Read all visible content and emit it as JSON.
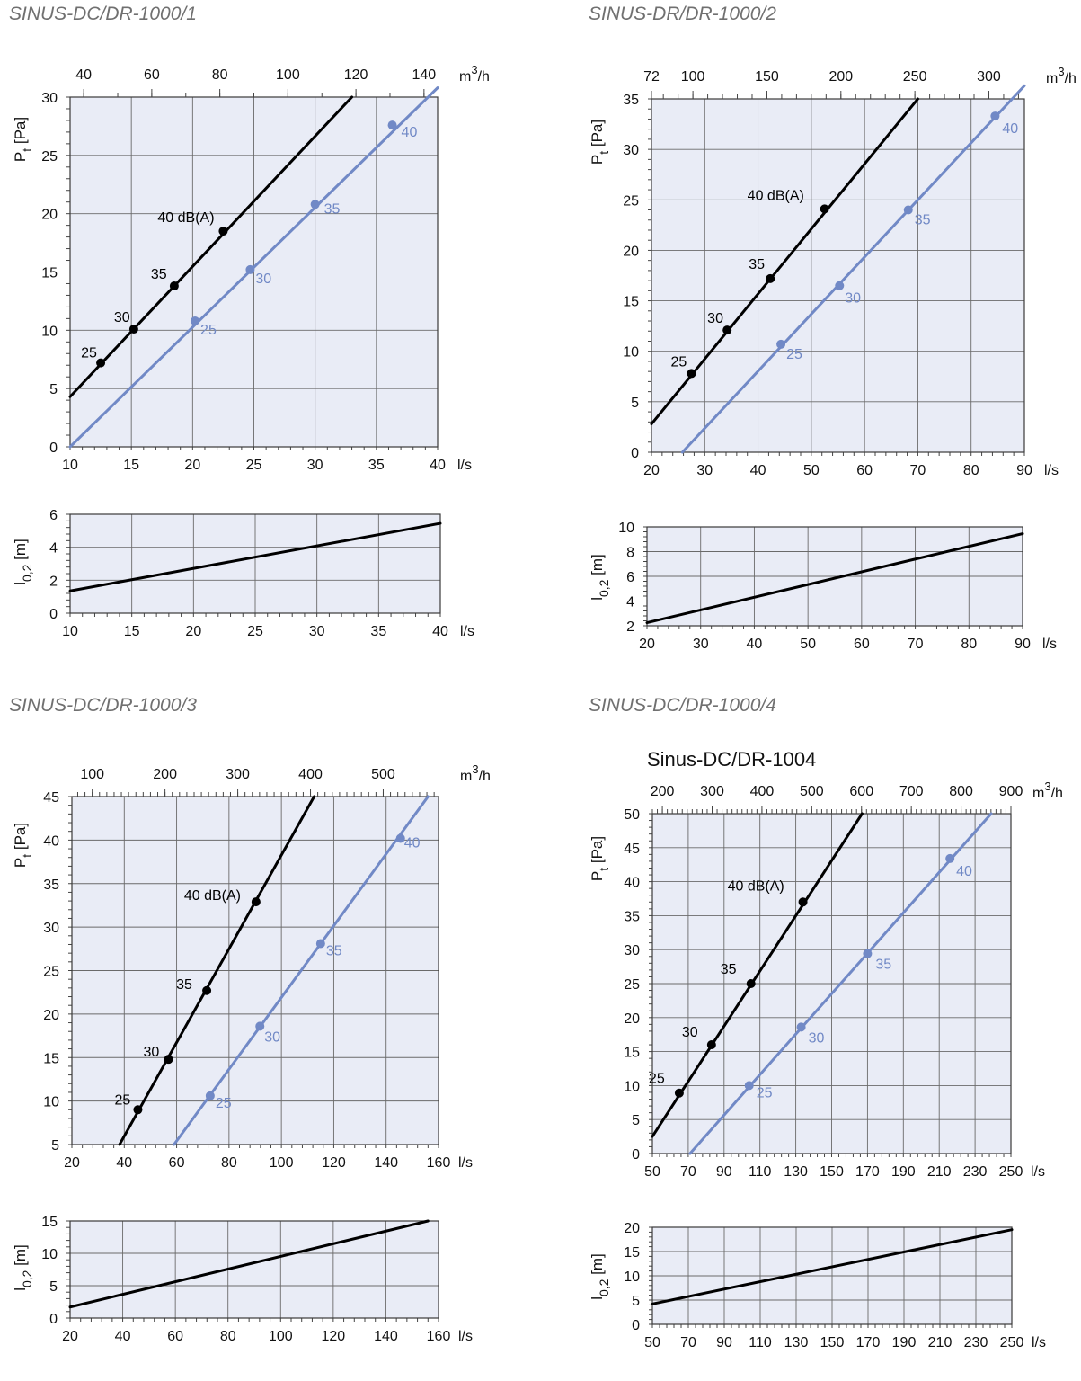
{
  "sections": [
    {
      "title": "SINUS-DC/DR-1000/1"
    },
    {
      "title": "SINUS-DR/DR-1000/2"
    },
    {
      "title": "SINUS-DC/DR-1000/3"
    },
    {
      "title": "SINUS-DC/DR-1000/4"
    }
  ],
  "colors": {
    "black_series": "#000000",
    "blue_series": "#7189c6",
    "plot_background": "#e9ecf6"
  },
  "chart_data": [
    {
      "type": "line",
      "title": "",
      "xlabel": "l/s",
      "ylabel": "Pt [Pa]",
      "top_axis_label": "m3/h",
      "xlim": [
        10,
        40
      ],
      "ylim": [
        0,
        30
      ],
      "x_ticks": [
        10,
        15,
        20,
        25,
        30,
        35,
        40
      ],
      "y_ticks": [
        0,
        5,
        10,
        15,
        20,
        25,
        30
      ],
      "top_ticks": [
        40,
        60,
        80,
        100,
        120,
        140
      ],
      "series": [
        {
          "color": "black",
          "line": [
            [
              10,
              4.3
            ],
            [
              33,
              30
            ]
          ],
          "points": [
            {
              "x": 12.5,
              "y": 7.2,
              "label": "25"
            },
            {
              "x": 15.2,
              "y": 10.1,
              "label": "30"
            },
            {
              "x": 18.5,
              "y": 13.8,
              "label": "35"
            },
            {
              "x": 22.5,
              "y": 18.5,
              "label": "40 dB(A)"
            }
          ]
        },
        {
          "color": "blue",
          "line": [
            [
              10,
              0
            ],
            [
              40,
              30.8
            ]
          ],
          "points": [
            {
              "x": 20.2,
              "y": 10.8,
              "label": "25"
            },
            {
              "x": 24.7,
              "y": 15.2,
              "label": "30"
            },
            {
              "x": 30,
              "y": 20.8,
              "label": "35"
            },
            {
              "x": 36.3,
              "y": 27.6,
              "label": "40"
            }
          ]
        }
      ]
    },
    {
      "type": "line",
      "title": "",
      "xlabel": "l/s",
      "ylabel": "l0,2 [m]",
      "xlim": [
        10,
        40
      ],
      "ylim": [
        0,
        6
      ],
      "x_ticks": [
        10,
        15,
        20,
        25,
        30,
        35,
        40
      ],
      "y_ticks": [
        0,
        2,
        4,
        6
      ],
      "series": [
        {
          "color": "black",
          "line": [
            [
              10,
              1.35
            ],
            [
              40,
              5.45
            ]
          ]
        }
      ]
    },
    {
      "type": "line",
      "title": "",
      "xlabel": "l/s",
      "ylabel": "Pt [Pa]",
      "top_axis_label": "m3/h",
      "xlim": [
        20,
        90
      ],
      "ylim": [
        0,
        35
      ],
      "x_ticks": [
        20,
        30,
        40,
        50,
        60,
        70,
        80,
        90
      ],
      "y_ticks": [
        0,
        5,
        10,
        15,
        20,
        25,
        30,
        35
      ],
      "top_ticks": [
        72,
        100,
        150,
        200,
        250,
        300
      ],
      "series": [
        {
          "color": "black",
          "line": [
            [
              20,
              2.8
            ],
            [
              70,
              35
            ]
          ],
          "points": [
            {
              "x": 27.5,
              "y": 7.8,
              "label": "25"
            },
            {
              "x": 34.2,
              "y": 12.1,
              "label": "30"
            },
            {
              "x": 42.3,
              "y": 17.2,
              "label": "35"
            },
            {
              "x": 52.5,
              "y": 24.1,
              "label": "40 dB(A)"
            }
          ]
        },
        {
          "color": "blue",
          "line": [
            [
              25.8,
              0
            ],
            [
              90,
              36.3
            ]
          ],
          "points": [
            {
              "x": 44.3,
              "y": 10.7,
              "label": "25"
            },
            {
              "x": 55.3,
              "y": 16.5,
              "label": "30"
            },
            {
              "x": 68.2,
              "y": 24.0,
              "label": "35"
            },
            {
              "x": 84.5,
              "y": 33.3,
              "label": "40"
            }
          ]
        }
      ]
    },
    {
      "type": "line",
      "title": "",
      "xlabel": "l/s",
      "ylabel": "l0,2 [m]",
      "xlim": [
        20,
        90
      ],
      "ylim": [
        2,
        10
      ],
      "x_ticks": [
        20,
        30,
        40,
        50,
        60,
        70,
        80,
        90
      ],
      "y_ticks": [
        2,
        4,
        6,
        8,
        10
      ],
      "series": [
        {
          "color": "black",
          "line": [
            [
              20,
              2.25
            ],
            [
              90,
              9.45
            ]
          ]
        }
      ]
    },
    {
      "type": "line",
      "title": "",
      "xlabel": "l/s",
      "ylabel": "Pt [Pa]",
      "top_axis_label": "m3/h",
      "xlim": [
        20,
        160
      ],
      "ylim": [
        5,
        45
      ],
      "x_ticks": [
        20,
        40,
        60,
        80,
        100,
        120,
        140,
        160
      ],
      "y_ticks": [
        5,
        10,
        15,
        20,
        25,
        30,
        35,
        40,
        45
      ],
      "top_ticks": [
        100,
        200,
        300,
        400,
        500
      ],
      "series": [
        {
          "color": "black",
          "line": [
            [
              38.2,
              5
            ],
            [
              112.5,
              45
            ]
          ],
          "points": [
            {
              "x": 45.2,
              "y": 9.0,
              "label": "25"
            },
            {
              "x": 56.9,
              "y": 14.8,
              "label": "30"
            },
            {
              "x": 71.5,
              "y": 22.7,
              "label": "35"
            },
            {
              "x": 90.3,
              "y": 32.9,
              "label": "40 dB(A)"
            }
          ]
        },
        {
          "color": "blue",
          "line": [
            [
              59,
              5
            ],
            [
              156,
              45
            ]
          ],
          "points": [
            {
              "x": 72.8,
              "y": 10.6,
              "label": "25"
            },
            {
              "x": 91.8,
              "y": 18.6,
              "label": "30"
            },
            {
              "x": 115,
              "y": 28.1,
              "label": "35"
            },
            {
              "x": 145.5,
              "y": 40.2,
              "label": "40"
            }
          ]
        }
      ]
    },
    {
      "type": "line",
      "title": "",
      "xlabel": "l/s",
      "ylabel": "l0,2 [m]",
      "xlim": [
        20,
        160
      ],
      "ylim": [
        0,
        15
      ],
      "x_ticks": [
        20,
        40,
        60,
        80,
        100,
        120,
        140,
        160
      ],
      "y_ticks": [
        0,
        5,
        10,
        15
      ],
      "series": [
        {
          "color": "black",
          "line": [
            [
              20,
              1.7
            ],
            [
              156,
              15
            ]
          ]
        }
      ]
    },
    {
      "type": "line",
      "title": "Sinus-DC/DR-1004",
      "xlabel": "l/s",
      "ylabel": "Pt [Pa]",
      "top_axis_label": "m3/h",
      "xlim": [
        50,
        250
      ],
      "ylim": [
        0,
        50
      ],
      "x_ticks": [
        50,
        70,
        90,
        110,
        130,
        150,
        170,
        190,
        210,
        230,
        250
      ],
      "y_ticks": [
        0,
        5,
        10,
        15,
        20,
        25,
        30,
        35,
        40,
        45,
        50
      ],
      "top_ticks": [
        200,
        300,
        400,
        500,
        600,
        700,
        800,
        900
      ],
      "series": [
        {
          "color": "black",
          "line": [
            [
              50,
              2.5
            ],
            [
              167,
              50
            ]
          ],
          "points": [
            {
              "x": 65,
              "y": 8.9,
              "label": "25"
            },
            {
              "x": 83,
              "y": 16.0,
              "label": "30"
            },
            {
              "x": 105,
              "y": 25.0,
              "label": "35"
            },
            {
              "x": 134,
              "y": 37.0,
              "label": "40 dB(A)"
            }
          ]
        },
        {
          "color": "blue",
          "line": [
            [
              71,
              0
            ],
            [
              239,
              50
            ]
          ],
          "points": [
            {
              "x": 104,
              "y": 10.0,
              "label": "25"
            },
            {
              "x": 133,
              "y": 18.6,
              "label": "30"
            },
            {
              "x": 170,
              "y": 29.4,
              "label": "35"
            },
            {
              "x": 216,
              "y": 43.4,
              "label": "40"
            }
          ]
        }
      ]
    },
    {
      "type": "line",
      "title": "",
      "xlabel": "l/s",
      "ylabel": "l0,2 [m]",
      "xlim": [
        50,
        250
      ],
      "ylim": [
        0,
        20
      ],
      "x_ticks": [
        50,
        70,
        90,
        110,
        130,
        150,
        170,
        190,
        210,
        230,
        250
      ],
      "y_ticks": [
        0,
        5,
        10,
        15,
        20
      ],
      "series": [
        {
          "color": "black",
          "line": [
            [
              50,
              4.2
            ],
            [
              250,
              19.5
            ]
          ]
        }
      ]
    }
  ]
}
